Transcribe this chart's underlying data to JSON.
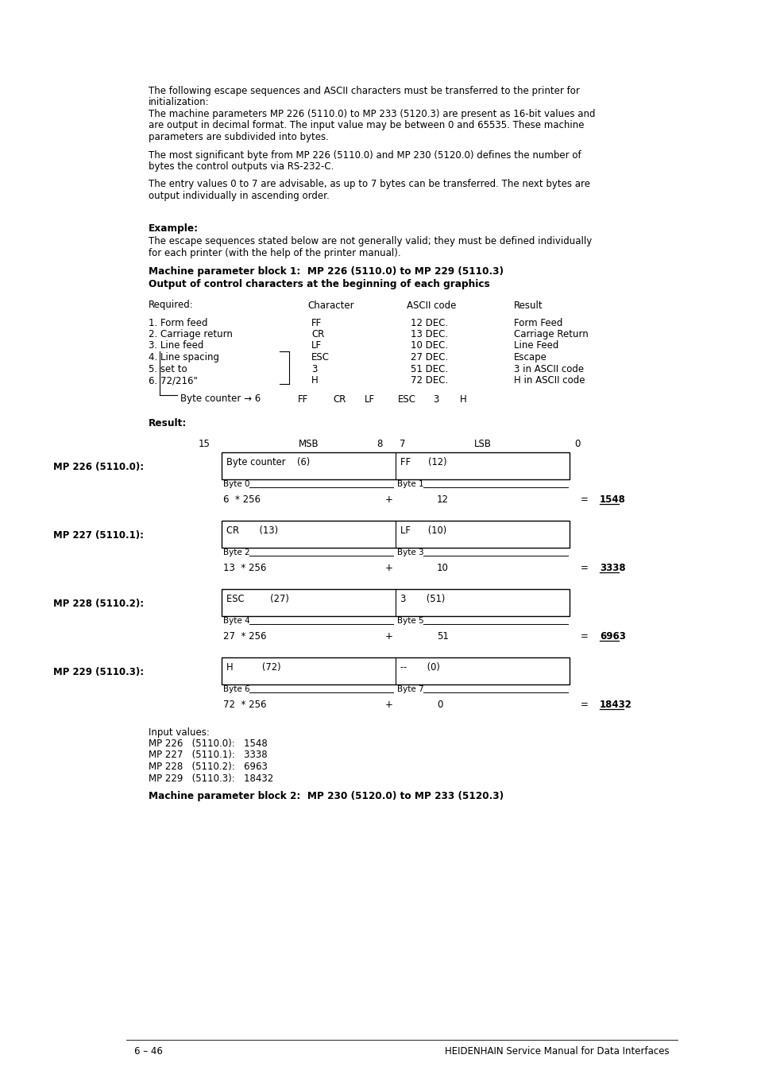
{
  "bg_color": "#ffffff",
  "para1_lines": [
    "The following escape sequences and ASCII characters must be transferred to the printer for",
    "initialization:",
    "The machine parameters MP 226 (5110.0) to MP 233 (5120.3) are present as 16-bit values and",
    "are output in decimal format. The input value may be between 0 and 65535. These machine",
    "parameters are subdivided into bytes."
  ],
  "para2_lines": [
    "The most significant byte from MP 226 (5110.0) and MP 230 (5120.0) defines the number of",
    "bytes the control outputs via RS-232-C."
  ],
  "para3_lines": [
    "The entry values 0 to 7 are advisable, as up to 7 bytes can be transferred. The next bytes are",
    "output individually in ascending order."
  ],
  "example_label": "Example:",
  "example_lines": [
    "The escape sequences stated below are not generally valid; they must be defined individually",
    "for each printer (with the help of the printer manual)."
  ],
  "bold_line1": "Machine parameter block 1:  MP 226 (5110.0) to MP 229 (5110.3)",
  "bold_line2": "Output of control characters at the beginning of each graphics",
  "table_rows": [
    [
      "1. Form feed",
      "FF",
      "12 DEC.",
      "Form Feed"
    ],
    [
      "2. Carriage return",
      "CR",
      "13 DEC.",
      "Carriage Return"
    ],
    [
      "3. Line feed",
      "LF",
      "10 DEC.",
      "Line Feed"
    ],
    [
      "4. Line spacing",
      "ESC",
      "27 DEC.",
      "Escape"
    ],
    [
      "5. set to",
      "3",
      "51 DEC.",
      "3 in ASCII code"
    ],
    [
      "6. 72/216\"",
      "H",
      "72 DEC.",
      "H in ASCII code"
    ]
  ],
  "byte_counter_items": [
    "FF",
    "CR",
    "LF",
    "ESC",
    "3",
    "H"
  ],
  "result_label": "Result:",
  "mp_blocks": [
    {
      "label": "MP 226 (5110.0):",
      "left_text": "Byte counter    (6)",
      "right_text": "FF      (12)",
      "left_byte": "Byte 0",
      "right_byte": "Byte 1",
      "left_num": "6  * 256",
      "right_num": "12",
      "result": "1548"
    },
    {
      "label": "MP 227 (5110.1):",
      "left_text": "CR       (13)",
      "right_text": "LF      (10)",
      "left_byte": "Byte 2",
      "right_byte": "Byte 3",
      "left_num": "13  * 256",
      "right_num": "10",
      "result": "3338"
    },
    {
      "label": "MP 228 (5110.2):",
      "left_text": "ESC         (27)",
      "right_text": "3       (51)",
      "left_byte": "Byte 4",
      "right_byte": "Byte 5",
      "left_num": "27  * 256",
      "right_num": "51",
      "result": "6963"
    },
    {
      "label": "MP 229 (5110.3):",
      "left_text": "H          (72)",
      "right_text": "--       (0)",
      "left_byte": "Byte 6",
      "right_byte": "Byte 7",
      "left_num": "72  * 256",
      "right_num": "0",
      "result": "18432"
    }
  ],
  "input_values_lines": [
    "Input values:",
    "MP 226   (5110.0):   1548",
    "MP 227   (5110.1):   3338",
    "MP 228   (5110.2):   6963",
    "MP 229   (5110.3):   18432"
  ],
  "bold_line3": "Machine parameter block 2:  MP 230 (5120.0) to MP 233 (5120.3)",
  "footer_left": "6 – 46",
  "footer_right": "HEIDENHAIN Service Manual for Data Interfaces"
}
